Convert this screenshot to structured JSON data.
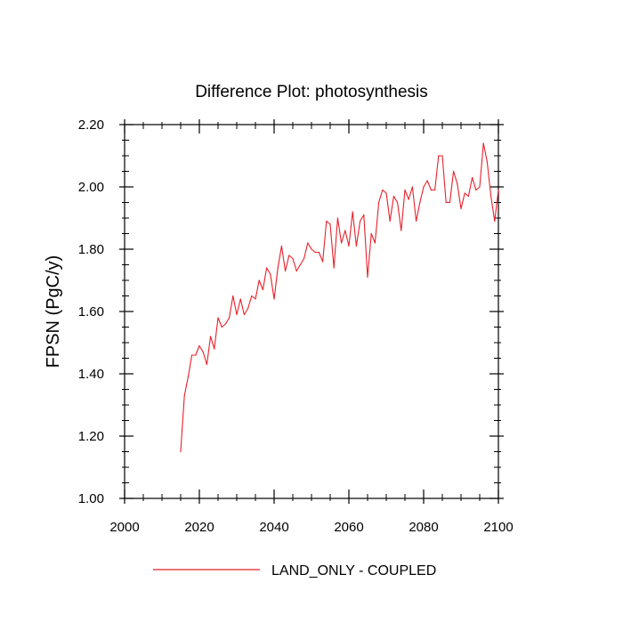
{
  "chart_data": {
    "type": "line",
    "title": "Difference Plot: photosynthesis",
    "xlabel": "",
    "ylabel": "FPSN  (PgC/y)",
    "xlim": [
      2000,
      2100
    ],
    "ylim": [
      1.0,
      2.2
    ],
    "xticks": [
      2000,
      2020,
      2040,
      2060,
      2080,
      2100
    ],
    "xtick_labels": [
      "2000",
      "2020",
      "2040",
      "2060",
      "2080",
      "2100"
    ],
    "yticks": [
      1.0,
      1.2,
      1.4,
      1.6,
      1.8,
      2.0,
      2.2
    ],
    "ytick_labels": [
      "1.00",
      "1.20",
      "1.40",
      "1.60",
      "1.80",
      "2.00",
      "2.20"
    ],
    "grid": false,
    "legend_position": "bottom-center",
    "series": [
      {
        "name": "LAND_ONLY - COUPLED",
        "color": "#e8202a",
        "x": [
          2015,
          2016,
          2017,
          2018,
          2019,
          2020,
          2021,
          2022,
          2023,
          2024,
          2025,
          2026,
          2027,
          2028,
          2029,
          2030,
          2031,
          2032,
          2033,
          2034,
          2035,
          2036,
          2037,
          2038,
          2039,
          2040,
          2041,
          2042,
          2043,
          2044,
          2045,
          2046,
          2047,
          2048,
          2049,
          2050,
          2051,
          2052,
          2053,
          2054,
          2055,
          2056,
          2057,
          2058,
          2059,
          2060,
          2061,
          2062,
          2063,
          2064,
          2065,
          2066,
          2067,
          2068,
          2069,
          2070,
          2071,
          2072,
          2073,
          2074,
          2075,
          2076,
          2077,
          2078,
          2079,
          2080,
          2081,
          2082,
          2083,
          2084,
          2085,
          2086,
          2087,
          2088,
          2089,
          2090,
          2091,
          2092,
          2093,
          2094,
          2095,
          2096,
          2097,
          2098,
          2099,
          2100
        ],
        "values": [
          1.15,
          1.33,
          1.39,
          1.46,
          1.46,
          1.49,
          1.47,
          1.43,
          1.52,
          1.48,
          1.58,
          1.55,
          1.56,
          1.58,
          1.65,
          1.59,
          1.64,
          1.59,
          1.61,
          1.65,
          1.64,
          1.7,
          1.67,
          1.74,
          1.72,
          1.64,
          1.74,
          1.81,
          1.73,
          1.78,
          1.77,
          1.73,
          1.75,
          1.77,
          1.82,
          1.8,
          1.79,
          1.79,
          1.76,
          1.89,
          1.88,
          1.74,
          1.9,
          1.82,
          1.86,
          1.81,
          1.92,
          1.81,
          1.89,
          1.91,
          1.71,
          1.85,
          1.82,
          1.95,
          1.99,
          1.98,
          1.89,
          1.97,
          1.95,
          1.86,
          1.99,
          1.96,
          2.0,
          1.89,
          1.95,
          2.0,
          2.02,
          1.99,
          1.99,
          2.1,
          2.1,
          1.95,
          1.95,
          2.05,
          2.01,
          1.93,
          1.98,
          1.97,
          2.03,
          1.99,
          2.0,
          2.14,
          2.08,
          1.97,
          1.89,
          1.99
        ]
      }
    ]
  }
}
